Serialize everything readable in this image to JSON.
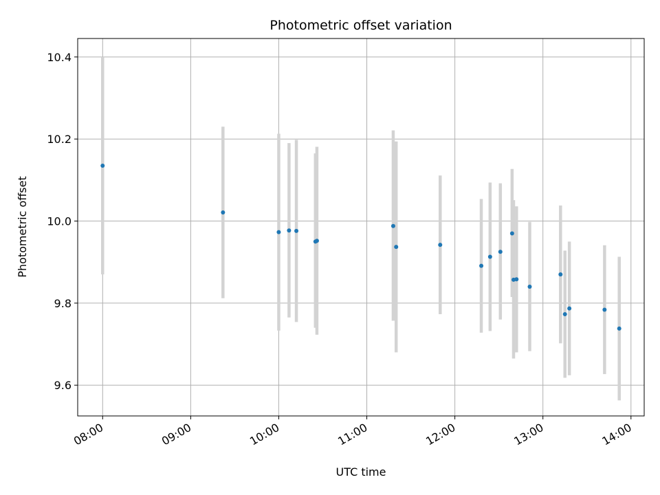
{
  "chart_data": {
    "type": "scatter",
    "title": "Photometric offset variation",
    "xlabel": "UTC time",
    "ylabel": "Photometric offset",
    "x_ticks": [
      "08:00",
      "09:00",
      "10:00",
      "11:00",
      "12:00",
      "13:00",
      "14:00"
    ],
    "y_ticks": [
      "9.6",
      "9.8",
      "10.0",
      "10.2",
      "10.4"
    ],
    "xlim": [
      "07:43",
      "14:09"
    ],
    "ylim": [
      9.525,
      10.445
    ],
    "grid": true,
    "colors": {
      "point": "#1f77b4",
      "errorbar": "#d3d3d3"
    },
    "points": [
      {
        "t": "08:00",
        "y": 10.135,
        "ylo": 9.87,
        "yhi": 10.4
      },
      {
        "t": "09:22",
        "y": 10.021,
        "ylo": 9.812,
        "yhi": 10.23
      },
      {
        "t": "10:00",
        "y": 9.973,
        "ylo": 9.733,
        "yhi": 10.213
      },
      {
        "t": "10:07",
        "y": 9.977,
        "ylo": 9.765,
        "yhi": 10.19
      },
      {
        "t": "10:12",
        "y": 9.976,
        "ylo": 9.754,
        "yhi": 10.198
      },
      {
        "t": "10:25",
        "y": 9.95,
        "ylo": 9.74,
        "yhi": 10.165
      },
      {
        "t": "10:26",
        "y": 9.952,
        "ylo": 9.723,
        "yhi": 10.181
      },
      {
        "t": "11:18",
        "y": 9.988,
        "ylo": 9.757,
        "yhi": 10.221
      },
      {
        "t": "11:20",
        "y": 9.937,
        "ylo": 9.68,
        "yhi": 10.194
      },
      {
        "t": "11:50",
        "y": 9.942,
        "ylo": 9.773,
        "yhi": 10.111
      },
      {
        "t": "12:18",
        "y": 9.891,
        "ylo": 9.728,
        "yhi": 10.054
      },
      {
        "t": "12:24",
        "y": 9.913,
        "ylo": 9.732,
        "yhi": 10.094
      },
      {
        "t": "12:31",
        "y": 9.925,
        "ylo": 9.76,
        "yhi": 10.092
      },
      {
        "t": "12:39",
        "y": 9.97,
        "ylo": 9.815,
        "yhi": 10.127
      },
      {
        "t": "12:40",
        "y": 9.857,
        "ylo": 9.665,
        "yhi": 10.051
      },
      {
        "t": "12:42",
        "y": 9.858,
        "ylo": 9.68,
        "yhi": 10.036
      },
      {
        "t": "12:51",
        "y": 9.84,
        "ylo": 9.683,
        "yhi": 9.998
      },
      {
        "t": "13:12",
        "y": 9.87,
        "ylo": 9.702,
        "yhi": 10.038
      },
      {
        "t": "13:15",
        "y": 9.773,
        "ylo": 9.618,
        "yhi": 9.928
      },
      {
        "t": "13:18",
        "y": 9.787,
        "ylo": 9.624,
        "yhi": 9.95
      },
      {
        "t": "13:42",
        "y": 9.784,
        "ylo": 9.627,
        "yhi": 9.941
      },
      {
        "t": "13:52",
        "y": 9.738,
        "ylo": 9.563,
        "yhi": 9.913
      }
    ]
  }
}
